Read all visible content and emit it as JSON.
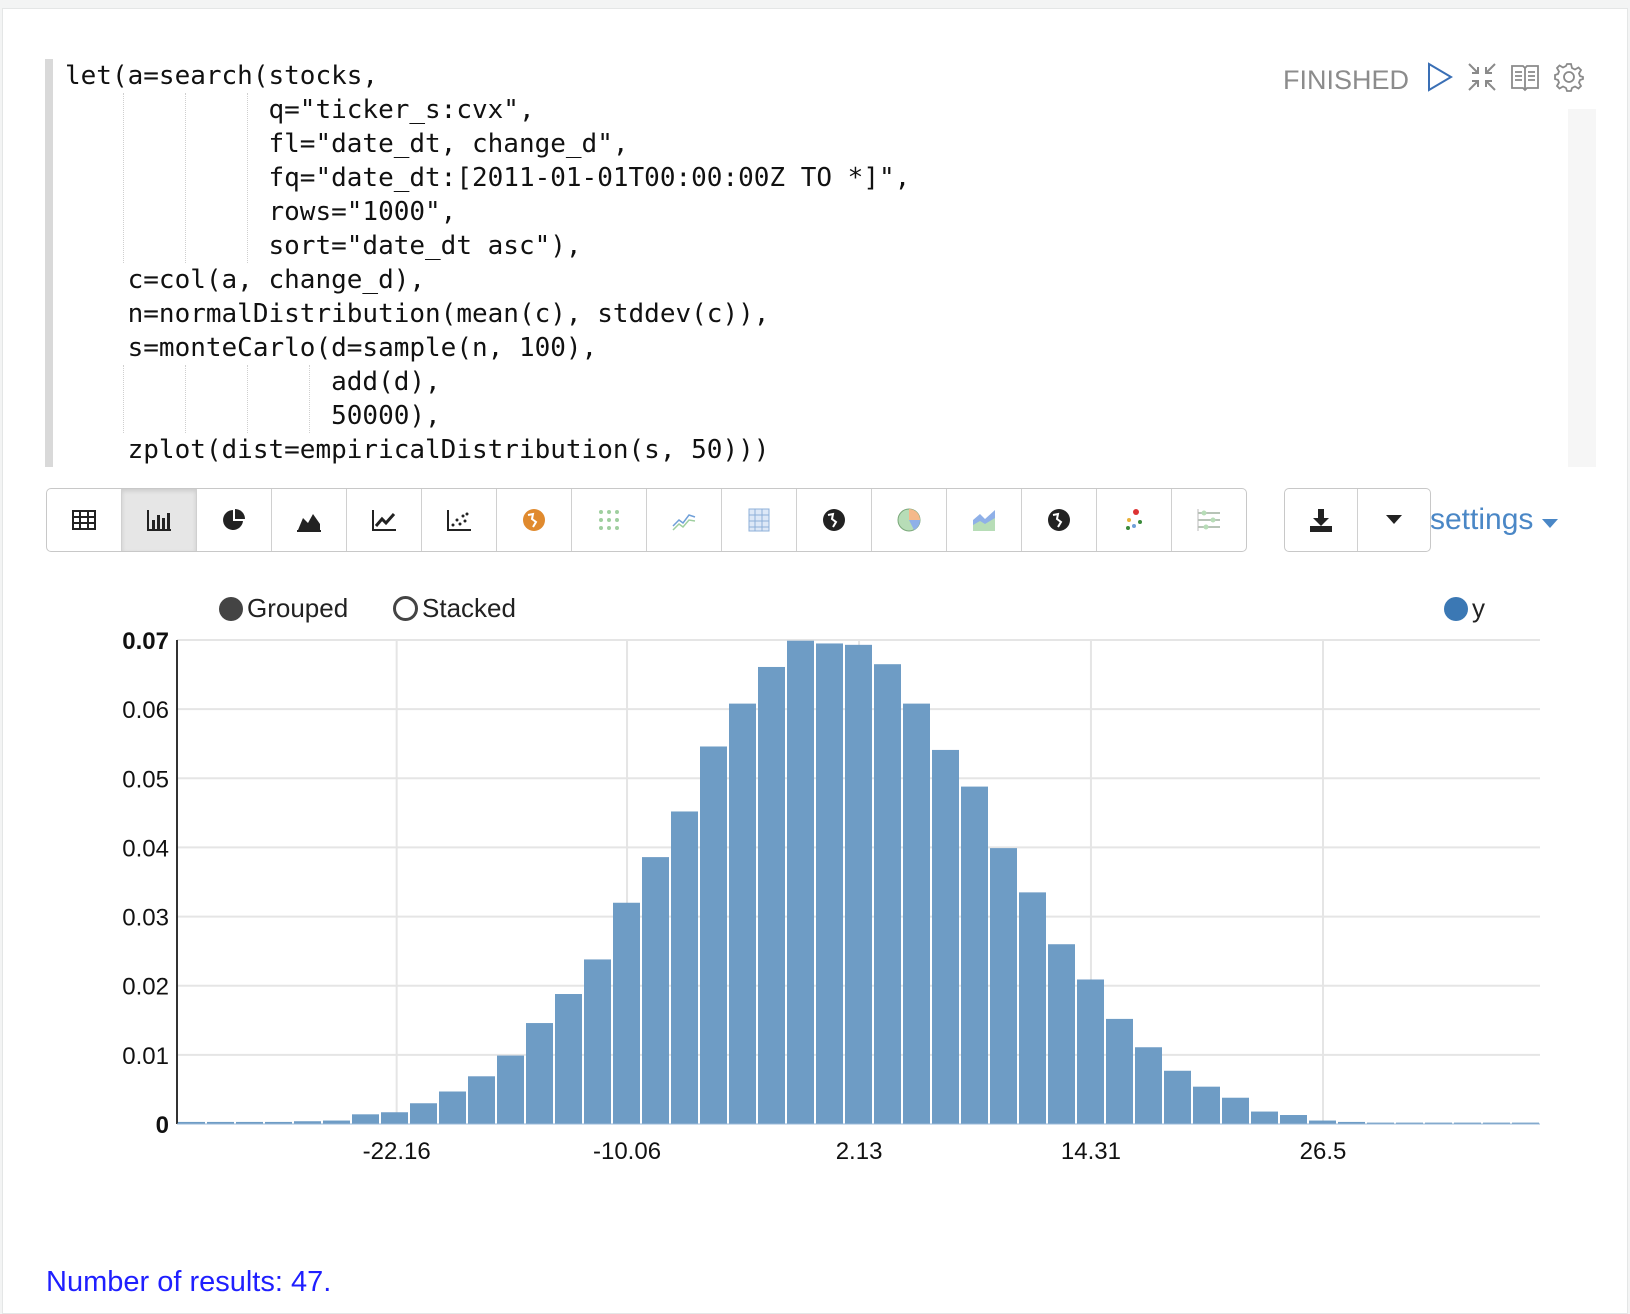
{
  "header": {
    "status": "FINISHED",
    "icons": [
      "play-icon",
      "collapse-icon",
      "book-icon",
      "gear-icon"
    ]
  },
  "code": {
    "lines": [
      "let(a=search(stocks,",
      "             q=\"ticker_s:cvx\",",
      "             fl=\"date_dt, change_d\",",
      "             fq=\"date_dt:[2011-01-01T00:00:00Z TO *]\",",
      "             rows=\"1000\",",
      "             sort=\"date_dt asc\"),",
      "    c=col(a, change_d),",
      "    n=normalDistribution(mean(c), stddev(c)),",
      "    s=monteCarlo(d=sample(n, 100),",
      "                 add(d),",
      "                 50000),",
      "    zplot(dist=empiricalDistribution(s, 50)))"
    ]
  },
  "toolbar": {
    "buttons": [
      "table",
      "bar-chart",
      "pie-chart",
      "area-chart",
      "line-chart",
      "scatter-chart",
      "map",
      "dot-matrix",
      "trend",
      "heatmap",
      "globe",
      "pie",
      "stacked-area",
      "world",
      "scatter-color",
      "sliders"
    ],
    "active": "bar-chart",
    "download_icon": "download-icon",
    "dropdown_icon": "caret-down-icon",
    "settings_label": "settings"
  },
  "legend": {
    "grouped": "Grouped",
    "stacked": "Stacked",
    "selected_mode": "Grouped",
    "series": "y"
  },
  "colors": {
    "bar": "#6b9ac4",
    "series_dot": "#3b78b4",
    "link": "#1f1fff",
    "settings": "#4a87c6"
  },
  "chart_data": {
    "type": "bar",
    "xlim": [
      -33.7,
      37.9
    ],
    "ylim": [
      0,
      0.07
    ],
    "grid": true,
    "legend_position": "top-right",
    "xticks": [
      -22.16,
      -10.06,
      2.13,
      14.31,
      26.5
    ],
    "xtick_labels": [
      "-22.16",
      "-10.06",
      "2.13",
      "14.31",
      "26.5"
    ],
    "yticks": [
      0,
      0.01,
      0.02,
      0.03,
      0.04,
      0.05,
      0.06,
      0.07
    ],
    "ytick_labels": [
      "0",
      "0.01",
      "0.02",
      "0.03",
      "0.04",
      "0.05",
      "0.06",
      "0.07"
    ],
    "series": [
      {
        "name": "y",
        "values": [
          0.0003,
          0.0003,
          0.0003,
          0.0003,
          0.0004,
          0.0005,
          0.0014,
          0.0017,
          0.003,
          0.0047,
          0.0069,
          0.0099,
          0.0146,
          0.0188,
          0.0238,
          0.032,
          0.0386,
          0.0452,
          0.0546,
          0.0608,
          0.0661,
          0.0699,
          0.0695,
          0.0693,
          0.0665,
          0.0608,
          0.0541,
          0.0488,
          0.0399,
          0.0335,
          0.026,
          0.0209,
          0.0152,
          0.0111,
          0.0077,
          0.0054,
          0.0038,
          0.0018,
          0.0013,
          0.0005,
          0.0003,
          0.0002,
          0.0002,
          0.0002,
          0.0002,
          0.0002,
          0.0002
        ]
      }
    ]
  },
  "footer": {
    "results": "Number of results: 47."
  }
}
